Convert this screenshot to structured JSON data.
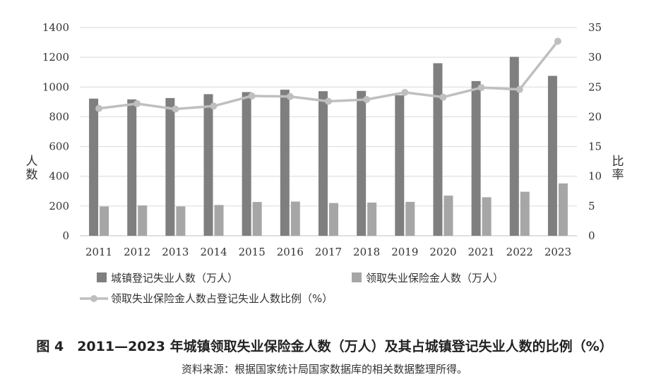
{
  "chart_data": {
    "type": "bar",
    "categories": [
      "2011",
      "2012",
      "2013",
      "2014",
      "2015",
      "2016",
      "2017",
      "2018",
      "2019",
      "2020",
      "2021",
      "2022",
      "2023"
    ],
    "series": [
      {
        "name": "城镇登记失业人数（万人）",
        "axis": "left",
        "kind": "bar",
        "color": "#7f7f7f",
        "values": [
          922,
          917,
          926,
          952,
          966,
          982,
          972,
          974,
          945,
          1160,
          1040,
          1203,
          1075
        ]
      },
      {
        "name": "领取失业保险金人数（万人）",
        "axis": "left",
        "kind": "bar",
        "color": "#a6a6a6",
        "values": [
          197,
          204,
          197,
          207,
          227,
          230,
          220,
          223,
          228,
          270,
          259,
          296,
          352
        ]
      },
      {
        "name": "领取失业保险金人数占登记失业人数比例（%）",
        "axis": "right",
        "kind": "line",
        "color": "#bfbfbf",
        "values": [
          21.4,
          22.2,
          21.3,
          21.8,
          23.5,
          23.4,
          22.6,
          22.9,
          24.1,
          23.3,
          24.9,
          24.6,
          32.7
        ]
      }
    ],
    "ylim": [
      0,
      1400
    ],
    "y2lim": [
      0,
      35
    ],
    "yticks": [
      "0",
      "200",
      "400",
      "600",
      "800",
      "1000",
      "1200",
      "1400"
    ],
    "y2ticks": [
      "0",
      "5",
      "10",
      "15",
      "20",
      "25",
      "30",
      "35"
    ],
    "ylabel": "人数",
    "y2label": "比率",
    "grid": true,
    "legend": "bottom"
  },
  "caption": "图 4　2011—2023 年城镇领取失业保险金人数（万人）及其占城镇登记失业人数的比例（%）",
  "source": "资料来源：根据国家统计局国家数据库的相关数据整理所得。"
}
